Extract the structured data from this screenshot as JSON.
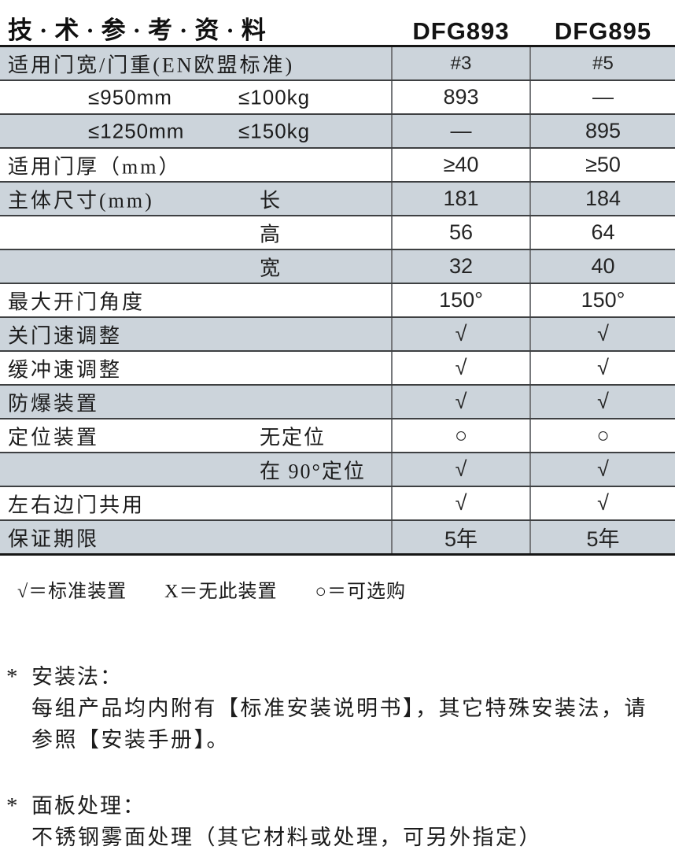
{
  "header": {
    "title": "技·术·参·考·资·料",
    "model_1": "DFG893",
    "model_2": "DFG895"
  },
  "table": {
    "rows": [
      {
        "label": "适用门宽/门重(EN欧盟标准)",
        "v1": "#3",
        "v2": "#5",
        "shade": true,
        "vsmall": true
      },
      {
        "pair": [
          "≤950mm",
          "≤100kg"
        ],
        "v1": "893",
        "v2": "—",
        "shade": false
      },
      {
        "pair": [
          "≤1250mm",
          "≤150kg"
        ],
        "v1": "—",
        "v2": "895",
        "shade": true
      },
      {
        "label": "适用门厚（mm）",
        "v1": "≥40",
        "v2": "≥50",
        "shade": false
      },
      {
        "label": "主体尺寸(mm)",
        "mid": "长",
        "v1": "181",
        "v2": "184",
        "shade": true
      },
      {
        "mid": "高",
        "v1": "56",
        "v2": "64",
        "shade": false
      },
      {
        "mid": "宽",
        "v1": "32",
        "v2": "40",
        "shade": true
      },
      {
        "label": "最大开门角度",
        "v1": "150°",
        "v2": "150°",
        "shade": false
      },
      {
        "label": "关门速调整",
        "v1": "√",
        "v2": "√",
        "shade": true
      },
      {
        "label": "缓冲速调整",
        "v1": "√",
        "v2": "√",
        "shade": false
      },
      {
        "label": "防爆装置",
        "v1": "√",
        "v2": "√",
        "shade": true
      },
      {
        "label": "定位装置",
        "mid": "无定位",
        "v1": "○",
        "v2": "○",
        "shade": false
      },
      {
        "mid": "在 90°定位",
        "v1": "√",
        "v2": "√",
        "shade": true
      },
      {
        "label": "左右边门共用",
        "v1": "√",
        "v2": "√",
        "shade": false
      },
      {
        "label": "保证期限",
        "v1": "5年",
        "v2": "5年",
        "shade": true
      }
    ]
  },
  "legend": {
    "items": [
      "√＝标准装置",
      "X＝无此装置",
      "○＝可选购"
    ]
  },
  "notes": [
    {
      "marker": "*",
      "title": "安装法：",
      "lines": [
        "每组产品均内附有【标准安装说明书】，其它特殊安装法，请",
        "参照【安装手册】。"
      ]
    },
    {
      "marker": "*",
      "title": "面板处理：",
      "lines": [
        "不锈钢雾面处理（其它材料或处理，可另外指定）"
      ]
    }
  ],
  "colors": {
    "row_shade": "#ccd4db",
    "border_dark": "#161616",
    "border_row": "#3e4042",
    "divider": "#77797c"
  }
}
